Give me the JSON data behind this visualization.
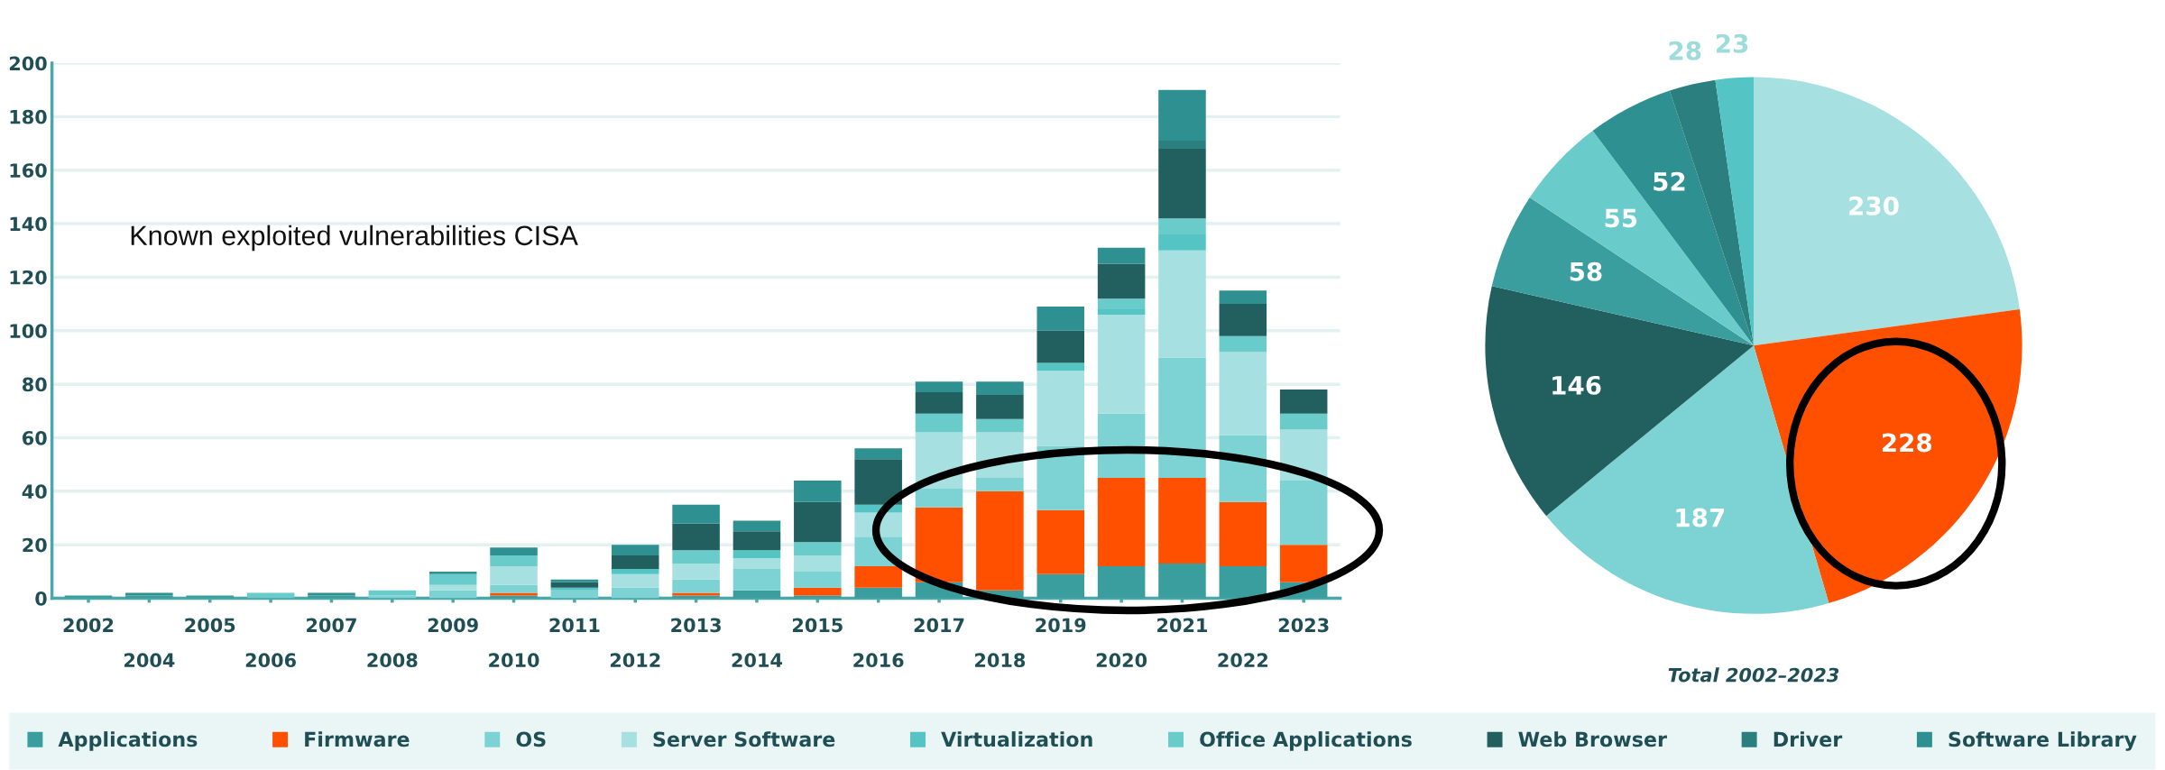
{
  "chart_data": [
    {
      "type": "bar",
      "stacked": true,
      "title": "Known exploited vulnerabilities CISA",
      "categories": [
        "2002",
        "2004",
        "2005",
        "2006",
        "2007",
        "2008",
        "2009",
        "2010",
        "2011",
        "2012",
        "2013",
        "2014",
        "2015",
        "2016",
        "2017",
        "2018",
        "2019",
        "2020",
        "2021",
        "2022",
        "2023"
      ],
      "series": [
        {
          "name": "Applications",
          "color": "#3a9e9e",
          "values": [
            1,
            1,
            1,
            0,
            1,
            0,
            0,
            1,
            0,
            0,
            1,
            3,
            1,
            4,
            6,
            3,
            9,
            12,
            13,
            12,
            6
          ]
        },
        {
          "name": "Firmware",
          "color": "#ff5000",
          "values": [
            0,
            0,
            0,
            0,
            0,
            0,
            0,
            1,
            0,
            0,
            1,
            0,
            3,
            8,
            28,
            37,
            24,
            33,
            32,
            24,
            14
          ]
        },
        {
          "name": "OS",
          "color": "#7dd3d3",
          "values": [
            0,
            0,
            0,
            0,
            0,
            1,
            3,
            3,
            3,
            4,
            5,
            8,
            6,
            11,
            7,
            5,
            24,
            24,
            45,
            25,
            24
          ]
        },
        {
          "name": "Server Software",
          "color": "#a6e0e0",
          "values": [
            0,
            0,
            0,
            0,
            0,
            0,
            2,
            7,
            0,
            5,
            6,
            4,
            6,
            9,
            21,
            17,
            28,
            37,
            40,
            31,
            19
          ]
        },
        {
          "name": "Virtualization",
          "color": "#55c4c4",
          "values": [
            0,
            0,
            0,
            0,
            0,
            0,
            0,
            0,
            1,
            2,
            0,
            3,
            0,
            3,
            0,
            0,
            3,
            2,
            6,
            0,
            0
          ]
        },
        {
          "name": "Office Applications",
          "color": "#6accca",
          "values": [
            0,
            0,
            0,
            2,
            0,
            2,
            4,
            4,
            0,
            0,
            5,
            0,
            5,
            0,
            7,
            5,
            0,
            4,
            6,
            6,
            6
          ]
        },
        {
          "name": "Web Browser",
          "color": "#21605f",
          "values": [
            0,
            0,
            0,
            0,
            0,
            0,
            0,
            0,
            2,
            5,
            10,
            7,
            15,
            17,
            8,
            9,
            12,
            13,
            26,
            12,
            9
          ]
        },
        {
          "name": "Driver",
          "color": "#2b7f7f",
          "values": [
            0,
            0,
            0,
            0,
            0,
            0,
            0,
            0,
            0,
            0,
            0,
            0,
            0,
            0,
            0,
            0,
            0,
            0,
            3,
            0,
            0
          ]
        },
        {
          "name": "Software Library",
          "color": "#2e9090",
          "values": [
            0,
            1,
            0,
            0,
            1,
            0,
            1,
            3,
            1,
            4,
            7,
            4,
            8,
            4,
            4,
            5,
            9,
            6,
            19,
            5,
            0
          ]
        }
      ],
      "ylim": [
        0,
        200
      ],
      "yticks": [
        0,
        20,
        40,
        60,
        80,
        100,
        120,
        140,
        160,
        180,
        200
      ],
      "grid": "y",
      "legend": "bottom"
    },
    {
      "type": "pie",
      "title": "Total 2002–2023",
      "categories": [
        null,
        null,
        null,
        null,
        null,
        null,
        null,
        null,
        null
      ],
      "values": [
        230,
        228,
        187,
        146,
        58,
        55,
        52,
        28,
        23
      ],
      "colors": [
        "#a6e0e0",
        "#ff5000",
        "#7dd3d3",
        "#21605f",
        "#3a9e9e",
        "#6accca",
        "#2e9090",
        "#2b7f7f",
        "#55c4c4"
      ],
      "data_labels": true
    }
  ]
}
